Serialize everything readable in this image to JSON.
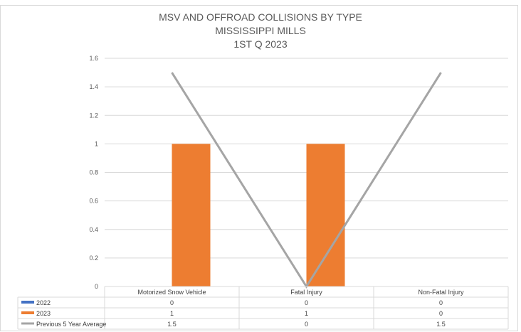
{
  "chart_data": {
    "type": "bar",
    "title_lines": [
      "MSV AND OFFROAD COLLISIONS BY TYPE",
      "MISSISSIPPI MILLS",
      "1ST Q 2023"
    ],
    "categories": [
      "Motorized Snow Vehicle",
      "Fatal Injury",
      "Non-Fatal Injury"
    ],
    "series": [
      {
        "name": "2022",
        "type": "bar",
        "color": "#4472c4",
        "values": [
          0,
          0,
          0
        ],
        "labels": [
          "0",
          "0",
          "0"
        ]
      },
      {
        "name": "2023",
        "type": "bar",
        "color": "#ed7d31",
        "values": [
          1,
          1,
          0
        ],
        "labels": [
          "1",
          "1",
          "0"
        ]
      },
      {
        "name": "Previous 5 Year Average",
        "type": "line",
        "color": "#a5a5a5",
        "values": [
          1.5,
          0,
          1.5
        ],
        "labels": [
          "1.5",
          "0",
          "1.5"
        ]
      }
    ],
    "yticks": [
      "0",
      "0.2",
      "0.4",
      "0.6",
      "0.8",
      "1",
      "1.2",
      "1.4",
      "1.6"
    ],
    "ylim": [
      0,
      1.6
    ],
    "grid": true,
    "data_table": true
  }
}
